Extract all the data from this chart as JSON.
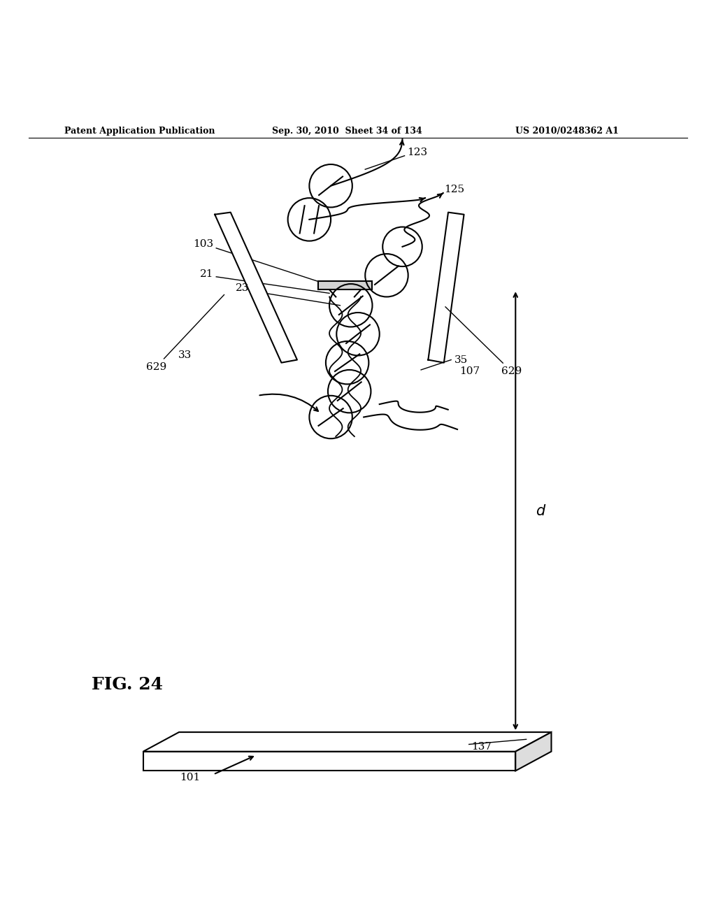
{
  "header_left": "Patent Application Publication",
  "header_mid": "Sep. 30, 2010  Sheet 34 of 134",
  "header_right": "US 2010/0248362 A1",
  "fig_label": "FIG. 24",
  "bg_color": "#ffffff",
  "line_color": "#000000"
}
